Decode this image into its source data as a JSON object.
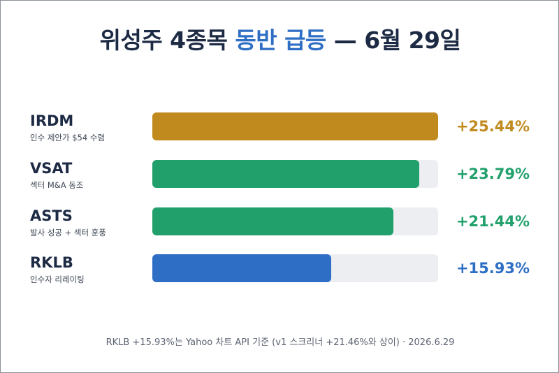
{
  "title": {
    "prefix": "위성주 4종목 ",
    "highlight": "동반 급등",
    "suffix": " — 6월 29일"
  },
  "colors": {
    "gold": "#c08a1e",
    "green": "#22a06b",
    "blue": "#2e6ec4",
    "track": "#eceef1",
    "title": "#1d2a44"
  },
  "chart_data": {
    "type": "bar",
    "orientation": "horizontal",
    "categories": [
      "IRDM",
      "VSAT",
      "ASTS",
      "RKLB"
    ],
    "values": [
      25.44,
      23.79,
      21.44,
      15.93
    ],
    "xlim": [
      0,
      25.44
    ],
    "rows": [
      {
        "ticker": "IRDM",
        "note": "인수 제안가 $54 수렴",
        "value": 25.44,
        "label": "+25.44%",
        "color": "#c08a1e"
      },
      {
        "ticker": "VSAT",
        "note": "섹터 M&A 동조",
        "value": 23.79,
        "label": "+23.79%",
        "color": "#22a06b"
      },
      {
        "ticker": "ASTS",
        "note": "발사 성공 + 섹터 훈풍",
        "value": 21.44,
        "label": "+21.44%",
        "color": "#22a06b"
      },
      {
        "ticker": "RKLB",
        "note": "인수자 리레이팅",
        "value": 15.93,
        "label": "+15.93%",
        "color": "#2e6ec4"
      }
    ]
  },
  "footer": "RKLB +15.93%는 Yahoo 차트 API 기준 (v1 스크리너 +21.46%와 상이) · 2026.6.29"
}
